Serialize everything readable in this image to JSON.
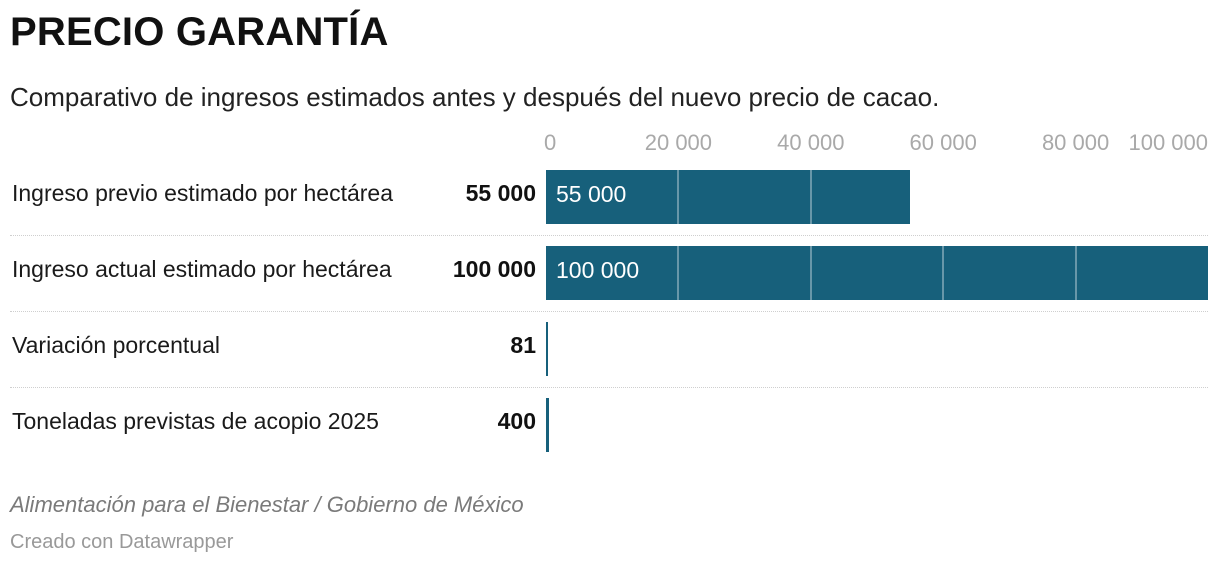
{
  "header": {
    "title": "PRECIO GARANTÍA",
    "subtitle": "Comparativo de ingresos estimados antes y después del nuevo precio de cacao."
  },
  "chart_data": {
    "type": "bar",
    "orientation": "horizontal",
    "xlim": [
      0,
      100000
    ],
    "ticks": [
      0,
      20000,
      40000,
      60000,
      80000,
      100000
    ],
    "tick_labels": [
      "0",
      "20 000",
      "40 000",
      "60 000",
      "80 000",
      "100 000"
    ],
    "categories": [
      "Ingreso previo estimado por hectárea",
      "Ingreso actual estimado por hectárea",
      "Variación porcentual",
      "Toneladas previstas de acopio 2025"
    ],
    "values": [
      55000,
      100000,
      81,
      400
    ],
    "value_labels": [
      "55 000",
      "100 000",
      "81",
      "400"
    ],
    "bar_labels": [
      "55 000",
      "100 000",
      "",
      ""
    ],
    "bar_color": "#17607b",
    "grid": true
  },
  "footer": {
    "source": "Alimentación para el Bienestar / Gobierno de México",
    "credit": "Creado con Datawrapper"
  }
}
